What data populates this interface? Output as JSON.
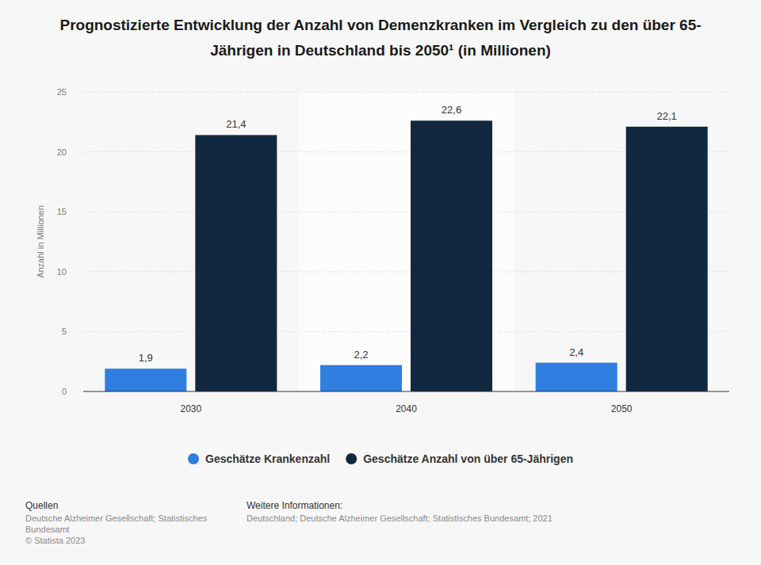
{
  "chart_data": {
    "type": "bar",
    "title": "Prognostizierte Entwicklung der Anzahl von Demenzkranken im Vergleich zu den über 65-Jährigen in Deutschland bis 2050¹ (in Millionen)",
    "y_label": "Anzahl in Millionen",
    "categories": [
      "2030",
      "2040",
      "2050"
    ],
    "series": [
      {
        "name": "Geschätze Krankenzahl",
        "color": "#2f7ee0",
        "values": [
          1.9,
          2.2,
          2.4
        ],
        "value_labels": [
          "1,9",
          "2,2",
          "2,4"
        ]
      },
      {
        "name": "Geschätze Anzahl von über 65-Jährigen",
        "color": "#112840",
        "values": [
          21.4,
          22.6,
          22.1
        ],
        "value_labels": [
          "21,4",
          "22,6",
          "22,1"
        ]
      }
    ],
    "ylim": [
      0,
      25
    ],
    "yticks": [
      0,
      5,
      10,
      15,
      20,
      25
    ],
    "grid": true,
    "data_labels": true,
    "legend": "bottom",
    "footer": {
      "sources_title": "Quellen",
      "sources": "Deutsche Alzheimer Gesellschaft; Statistisches Bundesamt",
      "copyright": "© Statista 2023",
      "info_title": "Weitere Informationen:",
      "info": "Deutschland; Deutsche Alzheimer Gesellschaft; Statistisches Bundesamt; 2021"
    }
  }
}
